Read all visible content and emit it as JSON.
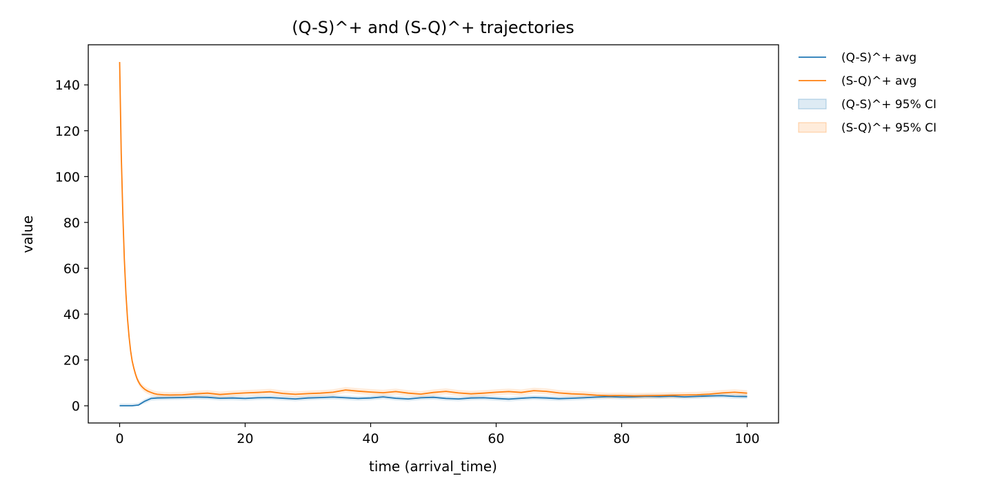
{
  "chart_data": {
    "type": "line",
    "title": "(Q-S)^+ and (S-Q)^+ trajectories",
    "xlabel": "time (arrival_time)",
    "ylabel": "value",
    "xlim": [
      -5,
      105
    ],
    "ylim": [
      -7.5,
      157.5
    ],
    "xticks": [
      0,
      20,
      40,
      60,
      80,
      100
    ],
    "yticks": [
      0,
      20,
      40,
      60,
      80,
      100,
      120,
      140
    ],
    "grid": false,
    "legend_position": "outside-right-top",
    "colors": {
      "qs": "#1f77b4",
      "sq": "#ff7f0e"
    },
    "legend": [
      {
        "label": "(Q-S)^+ avg",
        "kind": "line",
        "series": "qs"
      },
      {
        "label": "(S-Q)^+ avg",
        "kind": "line",
        "series": "sq"
      },
      {
        "label": "(Q-S)^+ 95% CI",
        "kind": "band",
        "series": "qs"
      },
      {
        "label": "(S-Q)^+ 95% CI",
        "kind": "band",
        "series": "sq"
      }
    ],
    "series": [
      {
        "id": "qs",
        "name": "(Q-S)^+ avg",
        "ci_name": "(Q-S)^+ 95% CI",
        "ci_halfwidth": 1.0,
        "x": [
          0,
          1,
          2,
          3,
          4,
          5,
          6,
          8,
          10,
          12,
          14,
          16,
          18,
          20,
          22,
          24,
          26,
          28,
          30,
          32,
          34,
          36,
          38,
          40,
          42,
          44,
          46,
          48,
          50,
          52,
          54,
          56,
          58,
          60,
          62,
          64,
          66,
          68,
          70,
          72,
          74,
          76,
          78,
          80,
          82,
          84,
          86,
          88,
          90,
          92,
          94,
          96,
          98,
          100
        ],
        "y": [
          0,
          0,
          0,
          0.3,
          2.0,
          3.2,
          3.4,
          3.5,
          3.6,
          3.8,
          3.7,
          3.3,
          3.4,
          3.2,
          3.5,
          3.6,
          3.3,
          3.0,
          3.4,
          3.6,
          3.8,
          3.5,
          3.2,
          3.4,
          3.9,
          3.3,
          3.0,
          3.5,
          3.7,
          3.2,
          3.0,
          3.4,
          3.5,
          3.2,
          2.9,
          3.3,
          3.6,
          3.4,
          3.1,
          3.3,
          3.5,
          3.8,
          4.0,
          3.8,
          3.9,
          4.1,
          4.0,
          4.2,
          3.9,
          4.1,
          4.3,
          4.4,
          4.1,
          4.0
        ]
      },
      {
        "id": "sq",
        "name": "(S-Q)^+ avg",
        "ci_name": "(S-Q)^+ 95% CI",
        "ci_halfwidth": 1.3,
        "x": [
          0,
          0.25,
          0.5,
          0.75,
          1,
          1.25,
          1.5,
          1.75,
          2,
          2.25,
          2.5,
          2.75,
          3,
          3.25,
          3.5,
          3.75,
          4,
          4.5,
          5,
          5.5,
          6,
          7,
          8,
          10,
          12,
          14,
          16,
          18,
          20,
          22,
          24,
          26,
          28,
          30,
          32,
          34,
          36,
          38,
          40,
          42,
          44,
          46,
          48,
          50,
          52,
          54,
          56,
          58,
          60,
          62,
          64,
          66,
          68,
          70,
          72,
          74,
          76,
          78,
          80,
          82,
          84,
          86,
          88,
          90,
          92,
          94,
          96,
          98,
          100
        ],
        "y": [
          150,
          110,
          84,
          64,
          49,
          38,
          30,
          24,
          19.5,
          16.5,
          14,
          12,
          10.5,
          9.3,
          8.5,
          7.8,
          7.2,
          6.4,
          5.8,
          5.3,
          5.0,
          4.8,
          4.7,
          4.8,
          5.2,
          5.5,
          4.9,
          5.3,
          5.6,
          5.8,
          6.1,
          5.4,
          5.0,
          5.3,
          5.5,
          5.9,
          6.9,
          6.4,
          6.0,
          5.7,
          6.2,
          5.5,
          5.1,
          5.8,
          6.3,
          5.6,
          5.2,
          5.5,
          5.9,
          6.2,
          5.8,
          6.6,
          6.3,
          5.6,
          5.2,
          5.0,
          4.6,
          4.4,
          4.5,
          4.3,
          4.4,
          4.5,
          4.6,
          4.7,
          4.8,
          5.1,
          5.6,
          5.9,
          5.5
        ]
      }
    ]
  }
}
